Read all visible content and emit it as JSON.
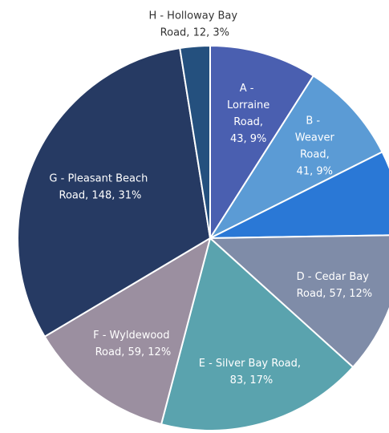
{
  "chart_data": {
    "type": "pie",
    "values": [
      43,
      41,
      34,
      57,
      83,
      59,
      148,
      12
    ],
    "value_labels": [
      "A - Lorraine Road, 43, 9%",
      "B - Weaver Road, 41, 9%",
      null,
      "D - Cedar Bay Road, 57, 12%",
      "E - Silver Bay Road, 83, 17%",
      "F - Wyldewood Road, 59, 12%",
      "G - Pleasant Beach Road, 148, 31%",
      "H - Holloway Bay Road, 12, 3%"
    ],
    "colors": [
      "#4a5fb0",
      "#5b9bd5",
      "#2a78d6",
      "#7f8ca8",
      "#5aa3ae",
      "#9b8fa0",
      "#263a63",
      "#24507e"
    ]
  }
}
